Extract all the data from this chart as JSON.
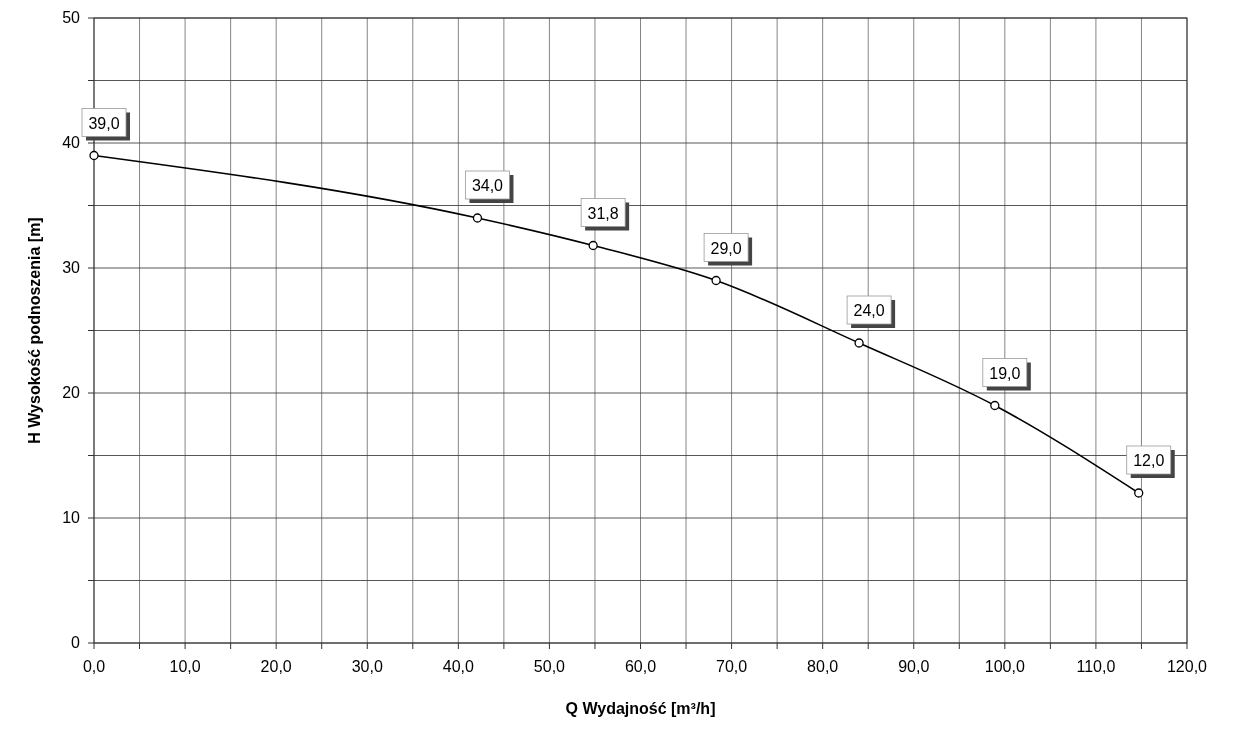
{
  "chart_data": {
    "type": "line",
    "xlabel": "Q Wydajność [m³/h]",
    "ylabel": "H Wysokość podnoszenia [m]",
    "xlim": [
      0,
      120
    ],
    "ylim": [
      0,
      50
    ],
    "xticks": [
      {
        "value": 0,
        "label": "0,0"
      },
      {
        "value": 5,
        "label": null
      },
      {
        "value": 10,
        "label": "10,0"
      },
      {
        "value": 15,
        "label": null
      },
      {
        "value": 20,
        "label": "20,0"
      },
      {
        "value": 25,
        "label": null
      },
      {
        "value": 30,
        "label": "30,0"
      },
      {
        "value": 35,
        "label": null
      },
      {
        "value": 40,
        "label": "40,0"
      },
      {
        "value": 45,
        "label": null
      },
      {
        "value": 50,
        "label": "50,0"
      },
      {
        "value": 55,
        "label": null
      },
      {
        "value": 60,
        "label": "60,0"
      },
      {
        "value": 65,
        "label": null
      },
      {
        "value": 70,
        "label": "70,0"
      },
      {
        "value": 75,
        "label": null
      },
      {
        "value": 80,
        "label": "80,0"
      },
      {
        "value": 85,
        "label": null
      },
      {
        "value": 90,
        "label": "90,0"
      },
      {
        "value": 95,
        "label": null
      },
      {
        "value": 100,
        "label": "100,0"
      },
      {
        "value": 105,
        "label": null
      },
      {
        "value": 110,
        "label": "110,0"
      },
      {
        "value": 115,
        "label": null
      },
      {
        "value": 120,
        "label": "120,0"
      }
    ],
    "yticks": [
      0,
      {
        "value": 5,
        "label": null
      },
      10,
      {
        "value": 15,
        "label": null
      },
      20,
      {
        "value": 25,
        "label": null
      },
      30,
      {
        "value": 35,
        "label": null
      },
      40,
      {
        "value": 45,
        "label": null
      },
      50
    ],
    "grid": true,
    "marker": "circle",
    "line_style": "solid",
    "x": [
      0,
      42.1,
      54.8,
      68.3,
      84,
      98.9,
      114.7
    ],
    "series": [
      {
        "color": "#000000",
        "values": [
          39,
          34,
          31.8,
          29,
          24,
          19,
          12
        ],
        "value_labels": [
          "39,0",
          "34,0",
          "31,8",
          "29,0",
          "24,0",
          "19,0",
          "12,0"
        ]
      }
    ]
  }
}
